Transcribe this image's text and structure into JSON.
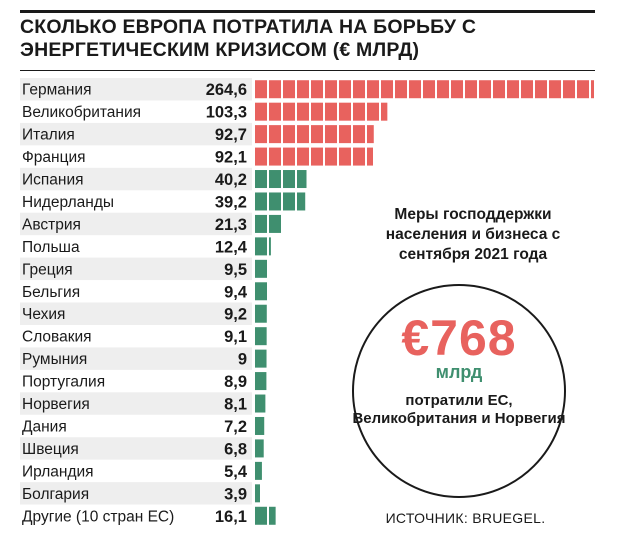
{
  "title": "СКОЛЬКО ЕВРОПА ПОТРАТИЛА НА БОРЬБУ С ЭНЕРГЕТИЧЕСКИМ КРИЗИСОМ (€ МЛРД)",
  "info_text": "Меры господдержки населения и бизнеса с сентября 2021 года",
  "total_amount": "€768",
  "total_unit": "млрд",
  "total_caption": "потратили ЕС, Великобритания и Норвегия",
  "source": "ИСТОЧНИК: BRUEGEL.",
  "colors": {
    "highlight": "#e8625e",
    "base": "#3f8f6f",
    "band": "#eeeeee"
  },
  "chart_data": {
    "type": "bar",
    "orientation": "horizontal",
    "title": "СКОЛЬКО ЕВРОПА ПОТРАТИЛА НА БОРЬБУ С ЭНЕРГЕТИЧЕСКИМ КРИЗИСОМ (€ МЛРД)",
    "categories": [
      "Германия",
      "Великобритания",
      "Италия",
      "Франция",
      "Испания",
      "Нидерланды",
      "Австрия",
      "Польша",
      "Греция",
      "Бельгия",
      "Чехия",
      "Словакия",
      "Румыния",
      "Португалия",
      "Норвегия",
      "Дания",
      "Швеция",
      "Ирландия",
      "Болгария",
      "Другие (10 стран ЕС)"
    ],
    "values": [
      264.6,
      103.3,
      92.7,
      92.1,
      40.2,
      39.2,
      21.3,
      12.4,
      9.5,
      9.4,
      9.2,
      9.1,
      9,
      8.9,
      8.1,
      7.2,
      6.8,
      5.4,
      3.9,
      16.1
    ],
    "value_labels": [
      "264,6",
      "103,3",
      "92,7",
      "92,1",
      "40,2",
      "39,2",
      "21,3",
      "12,4",
      "9,5",
      "9,4",
      "9,2",
      "9,1",
      "9",
      "8,9",
      "8,1",
      "7,2",
      "6,8",
      "5,4",
      "3,9",
      "16,1"
    ],
    "highlighted_count": 4,
    "xlim": [
      0,
      264.6
    ],
    "grid": false,
    "legend": "none",
    "xlabel": "",
    "ylabel": ""
  }
}
